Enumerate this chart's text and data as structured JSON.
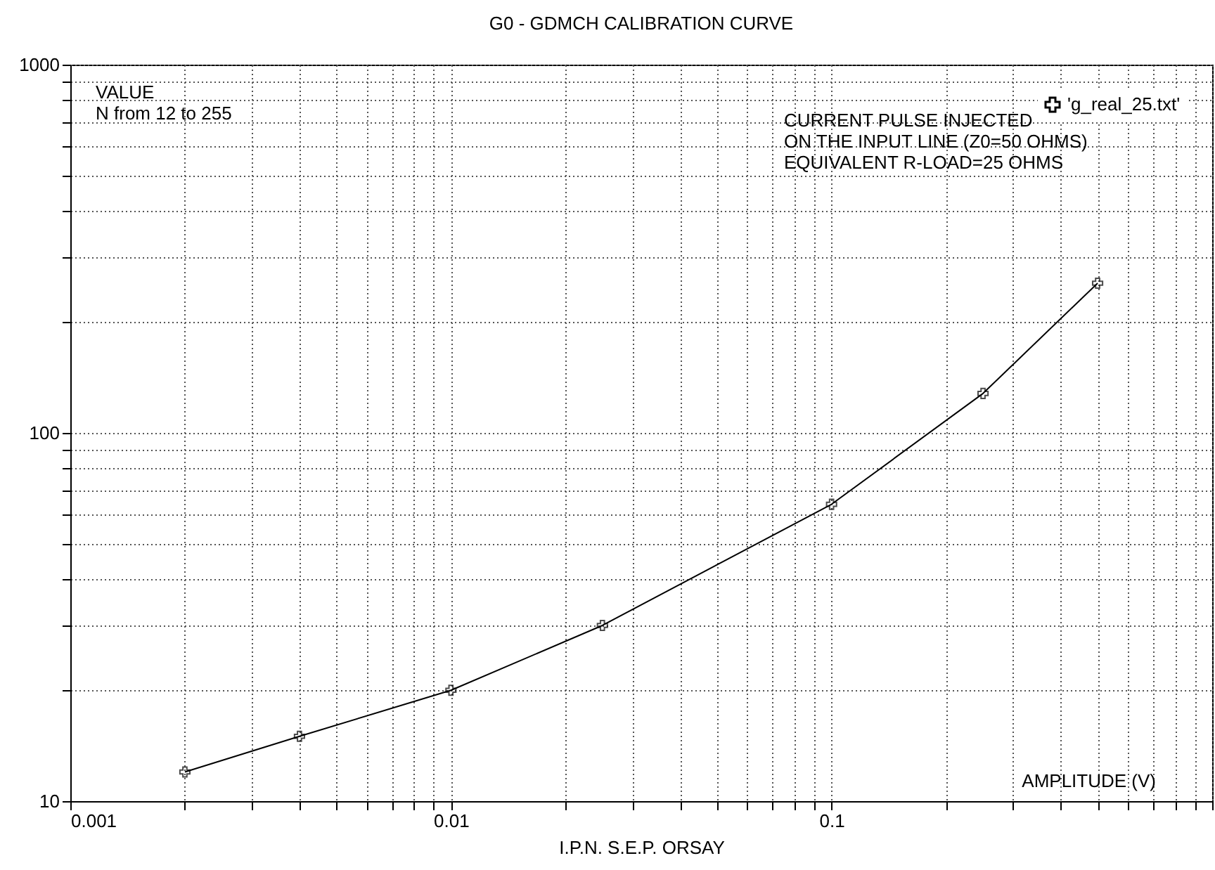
{
  "chart_data": {
    "type": "line",
    "title": "G0 - GDMCH CALIBRATION CURVE",
    "xlabel": "I.P.N. S.E.P. ORSAY",
    "annotations": [
      "VALUE\nN from  12 to 255",
      "CURRENT PULSE INJECTED\nON THE INPUT LINE (Z0=50 OHMS)\nEQUIVALENT R-LOAD=25 OHMS",
      "AMPLITUDE (V)"
    ],
    "x": [
      0.002,
      0.004,
      0.01,
      0.025,
      0.1,
      0.25,
      0.5
    ],
    "series": [
      {
        "name": "'g_real_25.txt'",
        "color": "#000000",
        "values": [
          12,
          15,
          20,
          30,
          64,
          128,
          255
        ]
      }
    ],
    "log": "xy",
    "xlim": [
      0.001,
      1
    ],
    "ylim": [
      10,
      1000
    ],
    "xticks": [
      0.001,
      {
        "value": 0.002,
        "label": null
      },
      {
        "value": 0.003,
        "label": null
      },
      {
        "value": 0.004,
        "label": null
      },
      {
        "value": 0.005,
        "label": null
      },
      {
        "value": 0.006,
        "label": null
      },
      {
        "value": 0.007,
        "label": null
      },
      {
        "value": 0.008,
        "label": null
      },
      {
        "value": 0.009,
        "label": null
      },
      0.01,
      {
        "value": 0.02,
        "label": null
      },
      {
        "value": 0.03,
        "label": null
      },
      {
        "value": 0.04,
        "label": null
      },
      {
        "value": 0.05,
        "label": null
      },
      {
        "value": 0.06,
        "label": null
      },
      {
        "value": 0.07,
        "label": null
      },
      {
        "value": 0.08,
        "label": null
      },
      {
        "value": 0.09,
        "label": null
      },
      0.1,
      {
        "value": 0.2,
        "label": null
      },
      {
        "value": 0.3,
        "label": null
      },
      {
        "value": 0.4,
        "label": null
      },
      {
        "value": 0.5,
        "label": null
      },
      {
        "value": 0.6,
        "label": null
      },
      {
        "value": 0.7,
        "label": null
      },
      {
        "value": 0.8,
        "label": null
      },
      {
        "value": 0.9,
        "label": null
      },
      {
        "value": 1,
        "label": null
      }
    ],
    "yticks": [
      10,
      {
        "value": 20,
        "label": null
      },
      {
        "value": 30,
        "label": null
      },
      {
        "value": 40,
        "label": null
      },
      {
        "value": 50,
        "label": null
      },
      {
        "value": 60,
        "label": null
      },
      {
        "value": 70,
        "label": null
      },
      {
        "value": 80,
        "label": null
      },
      {
        "value": 90,
        "label": null
      },
      100,
      {
        "value": 200,
        "label": null
      },
      {
        "value": 300,
        "label": null
      },
      {
        "value": 400,
        "label": null
      },
      {
        "value": 500,
        "label": null
      },
      {
        "value": 600,
        "label": null
      },
      {
        "value": 700,
        "label": null
      },
      {
        "value": 800,
        "label": null
      },
      {
        "value": 900,
        "label": null
      },
      1000
    ],
    "grid": true,
    "legend": "top right",
    "marker": "cross",
    "line_style": "solid"
  }
}
